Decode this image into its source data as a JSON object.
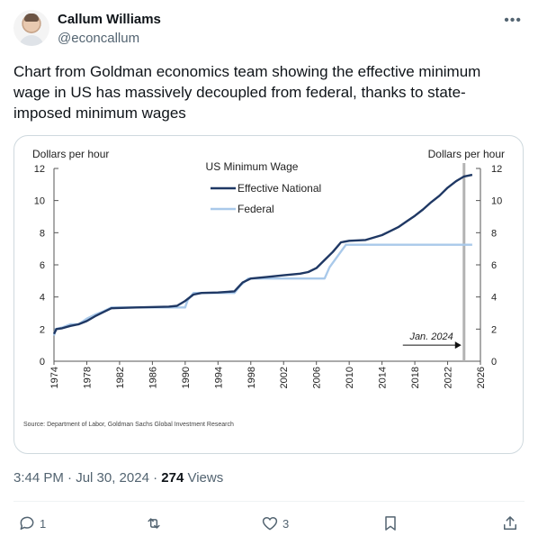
{
  "author": {
    "name": "Callum Williams",
    "handle": "@econcallum"
  },
  "tweet": {
    "text": "Chart from Goldman economics team showing the effective minimum wage in US has massively decoupled from federal, thanks to state-imposed minimum wages",
    "time": "3:44 PM · Jul 30, 2024 · ",
    "views_count": "274",
    "views_label": " Views"
  },
  "actions": {
    "replies": "1",
    "reposts": "",
    "likes": "3"
  },
  "colors": {
    "effective": "#1f3864",
    "federal": "#a9c9ea",
    "vline": "#b3b3b3"
  },
  "chart_data": {
    "type": "line",
    "title": "US Minimum Wage",
    "ylabel_left": "Dollars per hour",
    "ylabel_right": "Dollars per hour",
    "xlim": [
      1974,
      2026
    ],
    "ylim": [
      0,
      12
    ],
    "xticks": [
      1974,
      1978,
      1982,
      1986,
      1990,
      1994,
      1998,
      2002,
      2006,
      2010,
      2014,
      2018,
      2022,
      2026
    ],
    "yticks": [
      0,
      2,
      4,
      6,
      8,
      10,
      12
    ],
    "annotation": "Jan. 2024",
    "annotation_x": 2024,
    "source": "Source: Department of Labor, Goldman Sachs Global Investment Research",
    "series": [
      {
        "name": "Effective National",
        "points": [
          [
            1974,
            1.7
          ],
          [
            1974.3,
            2.0
          ],
          [
            1975,
            2.05
          ],
          [
            1976,
            2.2
          ],
          [
            1977,
            2.3
          ],
          [
            1978,
            2.5
          ],
          [
            1979,
            2.8
          ],
          [
            1980,
            3.05
          ],
          [
            1981,
            3.3
          ],
          [
            1984,
            3.35
          ],
          [
            1988,
            3.4
          ],
          [
            1989,
            3.45
          ],
          [
            1990,
            3.75
          ],
          [
            1991,
            4.15
          ],
          [
            1992,
            4.25
          ],
          [
            1994,
            4.28
          ],
          [
            1996,
            4.35
          ],
          [
            1997,
            4.9
          ],
          [
            1998,
            5.15
          ],
          [
            2000,
            5.25
          ],
          [
            2002,
            5.35
          ],
          [
            2004,
            5.45
          ],
          [
            2005,
            5.55
          ],
          [
            2006,
            5.8
          ],
          [
            2007,
            6.3
          ],
          [
            2008,
            6.8
          ],
          [
            2009,
            7.4
          ],
          [
            2010,
            7.5
          ],
          [
            2012,
            7.55
          ],
          [
            2014,
            7.85
          ],
          [
            2015,
            8.1
          ],
          [
            2016,
            8.35
          ],
          [
            2017,
            8.7
          ],
          [
            2018,
            9.05
          ],
          [
            2019,
            9.45
          ],
          [
            2020,
            9.9
          ],
          [
            2021,
            10.3
          ],
          [
            2022,
            10.8
          ],
          [
            2023,
            11.2
          ],
          [
            2024,
            11.5
          ],
          [
            2025,
            11.6
          ]
        ]
      },
      {
        "name": "Federal",
        "points": [
          [
            1974,
            1.6
          ],
          [
            1974.2,
            2.0
          ],
          [
            1975,
            2.1
          ],
          [
            1976,
            2.3
          ],
          [
            1977,
            2.3
          ],
          [
            1978,
            2.65
          ],
          [
            1979,
            2.9
          ],
          [
            1980,
            3.1
          ],
          [
            1981,
            3.35
          ],
          [
            1990,
            3.35
          ],
          [
            1990.3,
            3.8
          ],
          [
            1991,
            4.25
          ],
          [
            1996,
            4.25
          ],
          [
            1996.8,
            4.75
          ],
          [
            1997.7,
            5.15
          ],
          [
            2007,
            5.15
          ],
          [
            2007.6,
            5.85
          ],
          [
            2008.6,
            6.55
          ],
          [
            2009.6,
            7.25
          ],
          [
            2025,
            7.25
          ]
        ]
      }
    ]
  }
}
